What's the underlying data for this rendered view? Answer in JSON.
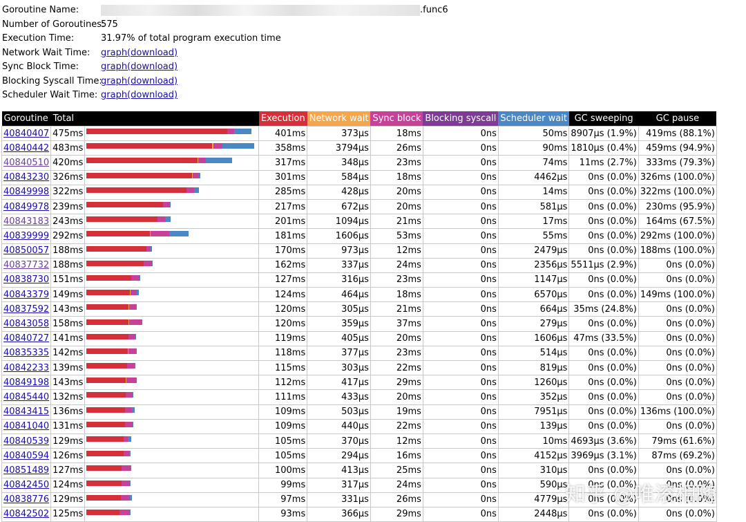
{
  "summary": {
    "name_label": "Goroutine Name:",
    "name_suffix": ".func6",
    "count_label": "Number of Goroutines:",
    "count": "575",
    "exec_label": "Execution Time:",
    "exec_value": "31.97% of total program execution time",
    "network_label": "Network Wait Time:",
    "sync_label": "Sync Block Time:",
    "syscall_label": "Blocking Syscall Time:",
    "sched_label": "Scheduler Wait Time:",
    "graph_link": "graph(download)"
  },
  "table": {
    "headers": [
      "Goroutine",
      "Total",
      "",
      "Execution",
      "Network wait",
      "Sync block",
      "Blocking syscall",
      "Scheduler wait",
      "GC sweeping",
      "GC pause"
    ],
    "colors": {
      "execution": "#d5303a",
      "network": "#f5a64a",
      "sync": "#c7409a",
      "syscall": "#7e3b96",
      "scheduler": "#4a87c5"
    },
    "bar_scale_ms": 492,
    "rows": [
      {
        "id": "40840407",
        "total": "475ms",
        "exec": "401ms",
        "net": "373µs",
        "sync": "18ms",
        "sys": "0ns",
        "sched": "50ms",
        "gcs": "8907µs (1.9%)",
        "gcp": "419ms (88.1%)",
        "visited": false,
        "b": [
          401,
          0.4,
          18,
          0,
          50
        ]
      },
      {
        "id": "40840442",
        "total": "483ms",
        "exec": "358ms",
        "net": "3794µs",
        "sync": "26ms",
        "sys": "0ns",
        "sched": "90ms",
        "gcs": "1810µs (0.4%)",
        "gcp": "459ms (94.9%)",
        "visited": false,
        "b": [
          358,
          3.8,
          26,
          0,
          90
        ]
      },
      {
        "id": "40840510",
        "total": "420ms",
        "exec": "317ms",
        "net": "348µs",
        "sync": "23ms",
        "sys": "0ns",
        "sched": "74ms",
        "gcs": "11ms (2.7%)",
        "gcp": "333ms (79.3%)",
        "visited": true,
        "b": [
          317,
          0.3,
          23,
          0,
          74
        ]
      },
      {
        "id": "40843230",
        "total": "326ms",
        "exec": "301ms",
        "net": "584µs",
        "sync": "18ms",
        "sys": "0ns",
        "sched": "4462µs",
        "gcs": "0ns (0.0%)",
        "gcp": "326ms (100.0%)",
        "visited": false,
        "b": [
          301,
          0.6,
          18,
          0,
          4.5
        ]
      },
      {
        "id": "40849998",
        "total": "322ms",
        "exec": "285ms",
        "net": "428µs",
        "sync": "20ms",
        "sys": "0ns",
        "sched": "14ms",
        "gcs": "0ns (0.0%)",
        "gcp": "322ms (100.0%)",
        "visited": false,
        "b": [
          285,
          0.4,
          20,
          0,
          14
        ]
      },
      {
        "id": "40849978",
        "total": "239ms",
        "exec": "217ms",
        "net": "672µs",
        "sync": "20ms",
        "sys": "0ns",
        "sched": "581µs",
        "gcs": "0ns (0.0%)",
        "gcp": "230ms (95.9%)",
        "visited": false,
        "b": [
          217,
          0.7,
          20,
          0,
          0.6
        ]
      },
      {
        "id": "40843183",
        "total": "243ms",
        "exec": "201ms",
        "net": "1094µs",
        "sync": "21ms",
        "sys": "0ns",
        "sched": "17ms",
        "gcs": "0ns (0.0%)",
        "gcp": "164ms (67.5%)",
        "visited": true,
        "b": [
          201,
          1.1,
          21,
          0,
          17
        ]
      },
      {
        "id": "40839999",
        "total": "292ms",
        "exec": "181ms",
        "net": "1606µs",
        "sync": "53ms",
        "sys": "0ns",
        "sched": "55ms",
        "gcs": "0ns (0.0%)",
        "gcp": "292ms (100.0%)",
        "visited": false,
        "b": [
          181,
          1.6,
          53,
          0,
          55
        ]
      },
      {
        "id": "40850057",
        "total": "188ms",
        "exec": "170ms",
        "net": "973µs",
        "sync": "12ms",
        "sys": "0ns",
        "sched": "2479µs",
        "gcs": "0ns (0.0%)",
        "gcp": "188ms (100.0%)",
        "visited": false,
        "b": [
          170,
          1.0,
          12,
          0,
          2.5
        ]
      },
      {
        "id": "40837732",
        "total": "188ms",
        "exec": "162ms",
        "net": "337µs",
        "sync": "24ms",
        "sys": "0ns",
        "sched": "2356µs",
        "gcs": "5511µs (2.9%)",
        "gcp": "0ns (0.0%)",
        "visited": true,
        "b": [
          162,
          0.3,
          24,
          0,
          2.4
        ]
      },
      {
        "id": "40838730",
        "total": "151ms",
        "exec": "127ms",
        "net": "316µs",
        "sync": "23ms",
        "sys": "0ns",
        "sched": "1147µs",
        "gcs": "0ns (0.0%)",
        "gcp": "0ns (0.0%)",
        "visited": false,
        "b": [
          127,
          0.3,
          23,
          0,
          1.1
        ]
      },
      {
        "id": "40843379",
        "total": "149ms",
        "exec": "124ms",
        "net": "464µs",
        "sync": "18ms",
        "sys": "0ns",
        "sched": "6570µs",
        "gcs": "0ns (0.0%)",
        "gcp": "149ms (100.0%)",
        "visited": false,
        "b": [
          124,
          0.5,
          18,
          0,
          6.6
        ]
      },
      {
        "id": "40837592",
        "total": "143ms",
        "exec": "120ms",
        "net": "305µs",
        "sync": "21ms",
        "sys": "0ns",
        "sched": "664µs",
        "gcs": "35ms (24.8%)",
        "gcp": "0ns (0.0%)",
        "visited": false,
        "b": [
          120,
          0.3,
          21,
          0,
          0.7
        ]
      },
      {
        "id": "40843058",
        "total": "158ms",
        "exec": "120ms",
        "net": "359µs",
        "sync": "37ms",
        "sys": "0ns",
        "sched": "279µs",
        "gcs": "0ns (0.0%)",
        "gcp": "0ns (0.0%)",
        "visited": false,
        "b": [
          120,
          0.4,
          37,
          0,
          0.3
        ]
      },
      {
        "id": "40840727",
        "total": "141ms",
        "exec": "119ms",
        "net": "405µs",
        "sync": "20ms",
        "sys": "0ns",
        "sched": "1606µs",
        "gcs": "47ms (33.5%)",
        "gcp": "0ns (0.0%)",
        "visited": false,
        "b": [
          119,
          0.4,
          20,
          0,
          1.6
        ]
      },
      {
        "id": "40835335",
        "total": "142ms",
        "exec": "118ms",
        "net": "377µs",
        "sync": "23ms",
        "sys": "0ns",
        "sched": "514µs",
        "gcs": "0ns (0.0%)",
        "gcp": "0ns (0.0%)",
        "visited": false,
        "b": [
          118,
          0.4,
          23,
          0,
          0.5
        ]
      },
      {
        "id": "40842233",
        "total": "139ms",
        "exec": "115ms",
        "net": "303µs",
        "sync": "22ms",
        "sys": "0ns",
        "sched": "819µs",
        "gcs": "0ns (0.0%)",
        "gcp": "0ns (0.0%)",
        "visited": false,
        "b": [
          115,
          0.3,
          22,
          0,
          0.8
        ]
      },
      {
        "id": "40849198",
        "total": "143ms",
        "exec": "112ms",
        "net": "417µs",
        "sync": "29ms",
        "sys": "0ns",
        "sched": "1260µs",
        "gcs": "0ns (0.0%)",
        "gcp": "0ns (0.0%)",
        "visited": false,
        "b": [
          112,
          0.4,
          29,
          0,
          1.3
        ]
      },
      {
        "id": "40845440",
        "total": "132ms",
        "exec": "111ms",
        "net": "433µs",
        "sync": "20ms",
        "sys": "0ns",
        "sched": "352µs",
        "gcs": "0ns (0.0%)",
        "gcp": "0ns (0.0%)",
        "visited": false,
        "b": [
          111,
          0.4,
          20,
          0,
          0.4
        ]
      },
      {
        "id": "40843415",
        "total": "136ms",
        "exec": "109ms",
        "net": "503µs",
        "sync": "19ms",
        "sys": "0ns",
        "sched": "7951µs",
        "gcs": "0ns (0.0%)",
        "gcp": "136ms (100.0%)",
        "visited": false,
        "b": [
          109,
          0.5,
          19,
          0,
          8.0
        ]
      },
      {
        "id": "40841040",
        "total": "131ms",
        "exec": "109ms",
        "net": "440µs",
        "sync": "22ms",
        "sys": "0ns",
        "sched": "139µs",
        "gcs": "0ns (0.0%)",
        "gcp": "0ns (0.0%)",
        "visited": false,
        "b": [
          109,
          0.4,
          22,
          0,
          0.1
        ]
      },
      {
        "id": "40840539",
        "total": "129ms",
        "exec": "105ms",
        "net": "370µs",
        "sync": "12ms",
        "sys": "0ns",
        "sched": "10ms",
        "gcs": "4693µs (3.6%)",
        "gcp": "79ms (61.6%)",
        "visited": false,
        "b": [
          105,
          0.4,
          12,
          0,
          10
        ]
      },
      {
        "id": "40840594",
        "total": "126ms",
        "exec": "105ms",
        "net": "294µs",
        "sync": "16ms",
        "sys": "0ns",
        "sched": "4152µs",
        "gcs": "3969µs (3.1%)",
        "gcp": "87ms (69.2%)",
        "visited": false,
        "b": [
          105,
          0.3,
          16,
          0,
          4.2
        ]
      },
      {
        "id": "40851489",
        "total": "127ms",
        "exec": "100ms",
        "net": "413µs",
        "sync": "25ms",
        "sys": "0ns",
        "sched": "310µs",
        "gcs": "0ns (0.0%)",
        "gcp": "0ns (0.0%)",
        "visited": false,
        "b": [
          100,
          0.4,
          25,
          0,
          0.3
        ]
      },
      {
        "id": "40842450",
        "total": "124ms",
        "exec": "99ms",
        "net": "317µs",
        "sync": "24ms",
        "sys": "0ns",
        "sched": "590µs",
        "gcs": "0ns (0.0%)",
        "gcp": "0ns (0.0%)",
        "visited": false,
        "b": [
          99,
          0.3,
          24,
          0,
          0.6
        ]
      },
      {
        "id": "40838776",
        "total": "129ms",
        "exec": "97ms",
        "net": "331µs",
        "sync": "26ms",
        "sys": "0ns",
        "sched": "4779µs",
        "gcs": "0ns (0.0%)",
        "gcp": "0ns (0.0%)",
        "visited": false,
        "b": [
          97,
          0.3,
          26,
          0,
          4.8
        ]
      },
      {
        "id": "40842502",
        "total": "125ms",
        "exec": "93ms",
        "net": "366µs",
        "sync": "29ms",
        "sys": "0ns",
        "sched": "2448µs",
        "gcs": "0ns (0.0%)",
        "gcp": "0ns (0.0%)",
        "visited": false,
        "b": [
          93,
          0.4,
          29,
          0,
          2.4
        ]
      }
    ]
  },
  "watermark": "知乎 @唯滚相随"
}
